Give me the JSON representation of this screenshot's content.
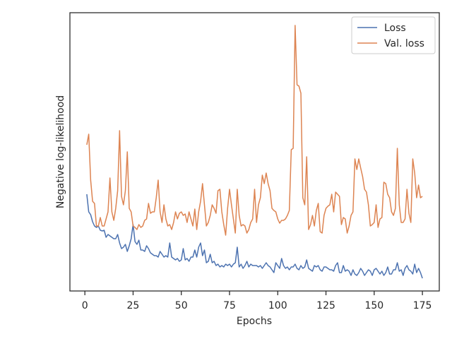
{
  "chart_data": {
    "type": "line",
    "xlabel": "Epochs",
    "ylabel": "Negative log-likelihood",
    "x": [
      1,
      2,
      3,
      4,
      5,
      6,
      7,
      8,
      9,
      10,
      11,
      12,
      13,
      14,
      15,
      16,
      17,
      18,
      19,
      20,
      21,
      22,
      23,
      24,
      25,
      26,
      27,
      28,
      29,
      30,
      31,
      32,
      33,
      34,
      35,
      36,
      37,
      38,
      39,
      40,
      41,
      42,
      43,
      44,
      45,
      46,
      47,
      48,
      49,
      50,
      51,
      52,
      53,
      54,
      55,
      56,
      57,
      58,
      59,
      60,
      61,
      62,
      63,
      64,
      65,
      66,
      67,
      68,
      69,
      70,
      71,
      72,
      73,
      74,
      75,
      76,
      77,
      78,
      79,
      80,
      81,
      82,
      83,
      84,
      85,
      86,
      87,
      88,
      89,
      90,
      91,
      92,
      93,
      94,
      95,
      96,
      97,
      98,
      99,
      100,
      101,
      102,
      103,
      104,
      105,
      106,
      107,
      108,
      109,
      110,
      111,
      112,
      113,
      114,
      115,
      116,
      117,
      118,
      119,
      120,
      121,
      122,
      123,
      124,
      125,
      126,
      127,
      128,
      129,
      130,
      131,
      132,
      133,
      134,
      135,
      136,
      137,
      138,
      139,
      140,
      141,
      142,
      143,
      144,
      145,
      146,
      147,
      148,
      149,
      150,
      151,
      152,
      153,
      154,
      155,
      156,
      157,
      158,
      159,
      160,
      161,
      162,
      163,
      164,
      165,
      166,
      167,
      168,
      169,
      170,
      171,
      172,
      173,
      174,
      175
    ],
    "series": [
      {
        "name": "Loss",
        "color": "#4c72b0",
        "values": [
          137,
          112,
          108,
          98,
          92,
          90,
          92,
          86,
          85,
          86,
          76,
          80,
          78,
          76,
          74,
          74,
          80,
          68,
          60,
          62,
          66,
          56,
          64,
          74,
          94,
          70,
          66,
          72,
          58,
          58,
          56,
          64,
          60,
          54,
          52,
          50,
          50,
          48,
          56,
          52,
          48,
          50,
          48,
          68,
          48,
          46,
          44,
          46,
          42,
          44,
          60,
          44,
          46,
          42,
          48,
          48,
          58,
          48,
          62,
          68,
          50,
          58,
          40,
          42,
          52,
          40,
          42,
          36,
          38,
          34,
          36,
          34,
          38,
          36,
          38,
          34,
          38,
          40,
          62,
          34,
          38,
          32,
          36,
          42,
          34,
          38,
          36,
          36,
          36,
          34,
          36,
          32,
          36,
          40,
          36,
          34,
          30,
          26,
          40,
          36,
          32,
          46,
          36,
          32,
          34,
          30,
          34,
          34,
          38,
          32,
          30,
          36,
          32,
          34,
          44,
          32,
          30,
          28,
          36,
          34,
          36,
          30,
          28,
          34,
          34,
          32,
          30,
          30,
          28,
          36,
          40,
          26,
          26,
          36,
          28,
          30,
          28,
          22,
          30,
          24,
          22,
          26,
          32,
          28,
          22,
          26,
          30,
          28,
          22,
          30,
          32,
          28,
          24,
          28,
          22,
          26,
          34,
          24,
          24,
          30,
          30,
          40,
          28,
          30,
          22,
          32,
          36,
          30,
          28,
          24,
          38,
          26,
          32,
          26,
          18
        ]
      },
      {
        "name": "Val. loss",
        "color": "#dd8452",
        "values": [
          207,
          222,
          157,
          127,
          124,
          92,
          92,
          104,
          92,
          92,
          102,
          112,
          160,
          112,
          100,
          117,
          142,
          227,
          134,
          122,
          142,
          197,
          117,
          112,
          92,
          90,
          87,
          94,
          90,
          92,
          100,
          102,
          124,
          110,
          112,
          112,
          132,
          157,
          112,
          97,
          122,
          102,
          92,
          94,
          87,
          97,
          112,
          102,
          110,
          112,
          107,
          109,
          97,
          112,
          102,
          92,
          116,
          87,
          112,
          127,
          152,
          122,
          92,
          97,
          107,
          122,
          117,
          110,
          142,
          144,
          112,
          94,
          79,
          117,
          144,
          122,
          102,
          82,
          144,
          107,
          92,
          94,
          92,
          82,
          87,
          97,
          102,
          144,
          97,
          122,
          132,
          164,
          152,
          167,
          152,
          142,
          117,
          114,
          112,
          102,
          96,
          100,
          100,
          102,
          107,
          114,
          200,
          202,
          376,
          292,
          290,
          280,
          132,
          122,
          190,
          87,
          94,
          107,
          92,
          114,
          124,
          84,
          82,
          107,
          117,
          120,
          122,
          137,
          112,
          140,
          137,
          134,
          94,
          104,
          102,
          82,
          92,
          107,
          112,
          187,
          172,
          187,
          174,
          162,
          144,
          140,
          122,
          92,
          94,
          97,
          122,
          90,
          102,
          104,
          154,
          152,
          137,
          132,
          112,
          107,
          117,
          202,
          122,
          97,
          97,
          102,
          144,
          110,
          97,
          187,
          167,
          132,
          150,
          132,
          134
        ]
      }
    ],
    "xlim": [
      -7.75,
      183.75
    ],
    "xticks": [
      0,
      25,
      50,
      75,
      100,
      125,
      150,
      175
    ],
    "ylim": [
      0,
      394
    ],
    "legend": "upper right",
    "grid": false
  }
}
